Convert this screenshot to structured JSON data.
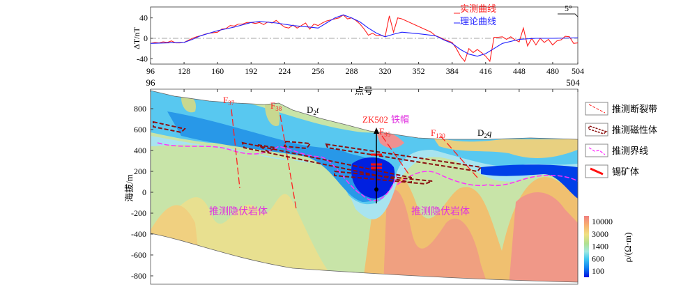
{
  "chart_data": [
    {
      "type": "line",
      "title": "",
      "xlabel": "点号",
      "ylabel": "ΔT/nT",
      "xlim": [
        96,
        504
      ],
      "ylim": [
        -50,
        60
      ],
      "xticks": [
        96,
        128,
        160,
        192,
        224,
        256,
        288,
        320,
        352,
        384,
        416,
        448,
        480,
        504
      ],
      "yticks": [
        40,
        0,
        -40
      ],
      "grid": false,
      "legend": "top-right",
      "north_arrow_label": "5°",
      "series": [
        {
          "name": "实测曲线",
          "color": "#ff2020",
          "x": [
            96,
            100,
            104,
            108,
            112,
            116,
            120,
            124,
            128,
            132,
            136,
            140,
            144,
            148,
            152,
            156,
            160,
            164,
            168,
            172,
            176,
            180,
            184,
            188,
            192,
            196,
            200,
            204,
            208,
            212,
            216,
            220,
            224,
            228,
            232,
            236,
            240,
            244,
            248,
            252,
            256,
            260,
            264,
            268,
            272,
            276,
            280,
            284,
            288,
            292,
            296,
            300,
            304,
            308,
            312,
            316,
            320,
            324,
            328,
            332,
            336,
            364,
            368,
            372,
            376,
            380,
            384,
            388,
            392,
            396,
            400,
            404,
            408,
            412,
            416,
            420,
            424,
            428,
            432,
            436,
            440,
            444,
            448,
            452,
            456,
            460,
            464,
            468,
            472,
            476,
            480,
            484,
            488,
            492,
            496,
            500,
            504
          ],
          "y": [
            -10,
            -8,
            -9,
            -7,
            -8,
            -5,
            -9,
            -9,
            -8,
            -4,
            0,
            3,
            5,
            8,
            10,
            11,
            12,
            18,
            19,
            25,
            24,
            28,
            28,
            31,
            31,
            29,
            31,
            27,
            32,
            30,
            35,
            28,
            22,
            20,
            26,
            20,
            25,
            30,
            18,
            28,
            25,
            30,
            34,
            36,
            38,
            40,
            46,
            38,
            40,
            35,
            28,
            18,
            6,
            10,
            5,
            6,
            3,
            44,
            12,
            40,
            38,
            12,
            5,
            2,
            -2,
            -5,
            -8,
            -20,
            -35,
            -45,
            -20,
            -28,
            -22,
            -28,
            -35,
            -45,
            2,
            2,
            3,
            -2,
            3,
            -3,
            -7,
            20,
            -15,
            0,
            -13,
            0,
            -8,
            -2,
            -13,
            -5,
            -3,
            4,
            3,
            -10,
            -9
          ]
        },
        {
          "name": "理论曲线",
          "color": "#2020ff",
          "x": [
            96,
            112,
            128,
            136,
            144,
            160,
            176,
            192,
            200,
            216,
            232,
            248,
            256,
            264,
            272,
            280,
            288,
            296,
            304,
            312,
            320,
            328,
            336,
            352,
            368,
            376,
            384,
            392,
            400,
            408,
            416,
            424,
            432,
            448,
            464,
            480,
            504
          ],
          "y": [
            -10,
            -9,
            -8,
            -2,
            5,
            15,
            22,
            31,
            33,
            30,
            25,
            22,
            20,
            30,
            40,
            46,
            40,
            32,
            20,
            10,
            3,
            8,
            12,
            9,
            5,
            -3,
            -10,
            -22,
            -31,
            -35,
            -30,
            -20,
            -10,
            -2,
            0,
            0,
            1
          ]
        }
      ]
    },
    {
      "type": "heatmap",
      "title": "",
      "xlabel": "",
      "ylabel": "海拔/m",
      "x_end_labels": [
        "96",
        "504"
      ],
      "yticks": [
        800,
        600,
        400,
        200,
        0,
        -200,
        -400,
        -600,
        -800
      ],
      "colorbar": {
        "label": "ρ/(Ω·m)",
        "ticks": [
          "10000",
          "3000",
          "1400",
          "600",
          "100"
        ]
      },
      "annotations": {
        "faults": [
          {
            "label": "F",
            "sub": "37"
          },
          {
            "label": "F",
            "sub": "38"
          },
          {
            "label": "F",
            "sub": "95"
          },
          {
            "label": "F",
            "sub": "120"
          }
        ],
        "strata": [
          {
            "label": "D",
            "sub": "2",
            "suffix": "t"
          },
          {
            "label": "D",
            "sub": "2",
            "suffix": "q"
          }
        ],
        "borehole": "ZK502",
        "gossan": "铁帽",
        "hidden_rock": [
          "推测隐伏岩体",
          "推测隐伏岩体"
        ]
      },
      "legend": [
        {
          "label": "推测断裂带",
          "symbol": "fault"
        },
        {
          "label": "推测磁性体",
          "symbol": "magnetic-body"
        },
        {
          "label": "推测界线",
          "symbol": "boundary"
        },
        {
          "label": "锡矿体",
          "symbol": "tin-orebody"
        }
      ]
    }
  ]
}
